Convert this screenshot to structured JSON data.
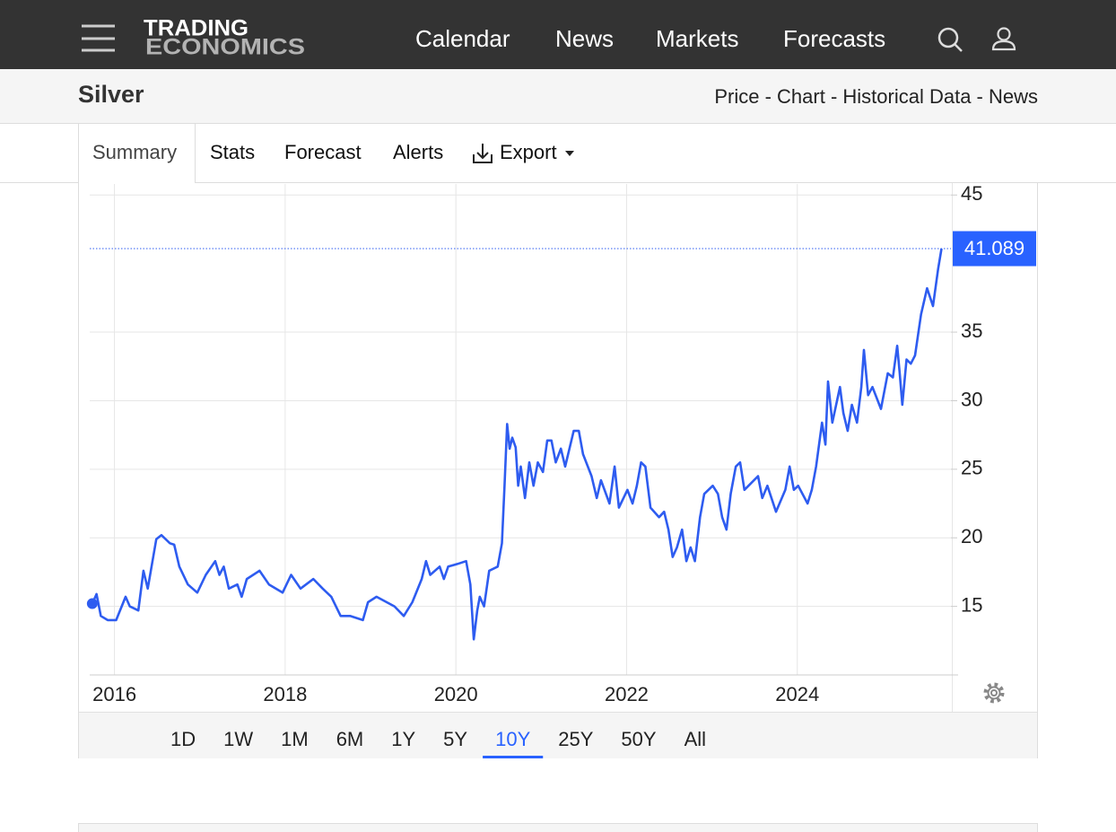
{
  "header": {
    "logo": [
      "TRADING",
      "ECONOMICS"
    ],
    "nav": [
      "Calendar",
      "News",
      "Markets",
      "Forecasts"
    ]
  },
  "title_bar": {
    "title": "Silver",
    "links": "Price - Chart - Historical Data - News"
  },
  "tabs": {
    "items": [
      "Summary",
      "Stats",
      "Forecast",
      "Alerts",
      "Export"
    ],
    "active": 0
  },
  "chart_data": {
    "type": "line",
    "color": "#2e5cf0",
    "grid": true,
    "xlim": [
      2015.71,
      2025.8
    ],
    "xticks": [
      2016,
      2018,
      2020,
      2022,
      2024
    ],
    "ylim": [
      10,
      46
    ],
    "yticks": [
      15,
      20,
      25,
      30,
      35,
      45
    ],
    "x": [
      2015.74,
      2015.79,
      2015.84,
      2015.92,
      2016.02,
      2016.13,
      2016.18,
      2016.28,
      2016.34,
      2016.39,
      2016.49,
      2016.55,
      2016.65,
      2016.7,
      2016.76,
      2016.86,
      2016.97,
      2017.07,
      2017.18,
      2017.23,
      2017.28,
      2017.34,
      2017.44,
      2017.49,
      2017.55,
      2017.7,
      2017.81,
      2017.97,
      2018.07,
      2018.18,
      2018.33,
      2018.44,
      2018.54,
      2018.65,
      2018.76,
      2018.91,
      2018.97,
      2019.07,
      2019.28,
      2019.39,
      2019.49,
      2019.6,
      2019.65,
      2019.7,
      2019.81,
      2019.86,
      2019.91,
      2020.02,
      2020.12,
      2020.17,
      2020.21,
      2020.25,
      2020.28,
      2020.33,
      2020.39,
      2020.49,
      2020.54,
      2020.57,
      2020.6,
      2020.63,
      2020.66,
      2020.7,
      2020.73,
      2020.76,
      2020.81,
      2020.86,
      2020.91,
      2020.96,
      2021.02,
      2021.07,
      2021.12,
      2021.17,
      2021.23,
      2021.28,
      2021.38,
      2021.44,
      2021.49,
      2021.59,
      2021.65,
      2021.7,
      2021.8,
      2021.86,
      2021.91,
      2022.01,
      2022.07,
      2022.12,
      2022.17,
      2022.22,
      2022.28,
      2022.38,
      2022.44,
      2022.49,
      2022.54,
      2022.59,
      2022.65,
      2022.7,
      2022.75,
      2022.8,
      2022.86,
      2022.91,
      2023.01,
      2023.07,
      2023.12,
      2023.17,
      2023.22,
      2023.28,
      2023.33,
      2023.38,
      2023.54,
      2023.59,
      2023.65,
      2023.75,
      2023.86,
      2023.91,
      2023.96,
      2024.01,
      2024.12,
      2024.17,
      2024.22,
      2024.29,
      2024.33,
      2024.36,
      2024.41,
      2024.5,
      2024.54,
      2024.59,
      2024.64,
      2024.7,
      2024.75,
      2024.78,
      2024.83,
      2024.88,
      2024.98,
      2025.06,
      2025.12,
      2025.17,
      2025.2,
      2025.23,
      2025.28,
      2025.33,
      2025.38,
      2025.41,
      2025.45,
      2025.52,
      2025.59,
      2025.65,
      2025.69
    ],
    "values": [
      15.2,
      15.9,
      14.3,
      14.0,
      14.0,
      15.7,
      15.0,
      14.7,
      17.6,
      16.3,
      19.9,
      20.2,
      19.6,
      19.5,
      17.9,
      16.6,
      16.0,
      17.3,
      18.3,
      17.3,
      17.9,
      16.3,
      16.6,
      15.7,
      17.0,
      17.6,
      16.6,
      16.0,
      17.3,
      16.3,
      17.0,
      16.3,
      15.7,
      14.3,
      14.3,
      14.0,
      15.3,
      15.7,
      15.0,
      14.3,
      15.3,
      17.0,
      18.3,
      17.3,
      17.9,
      17.0,
      17.9,
      18.1,
      18.3,
      16.6,
      12.6,
      14.7,
      15.7,
      15.0,
      17.6,
      17.9,
      19.6,
      23.8,
      28.3,
      26.5,
      27.3,
      26.6,
      23.8,
      25.2,
      22.9,
      25.5,
      23.8,
      25.5,
      24.8,
      27.1,
      27.1,
      25.5,
      26.5,
      25.2,
      27.8,
      27.8,
      26.1,
      24.5,
      22.9,
      24.2,
      22.5,
      25.2,
      22.2,
      23.5,
      22.5,
      23.8,
      25.5,
      25.2,
      22.2,
      21.5,
      21.9,
      20.6,
      18.6,
      19.3,
      20.6,
      18.3,
      19.3,
      18.3,
      21.5,
      23.2,
      23.8,
      23.2,
      21.5,
      20.6,
      23.2,
      25.2,
      25.5,
      23.5,
      24.5,
      22.9,
      23.8,
      21.9,
      23.5,
      25.2,
      23.5,
      23.8,
      22.5,
      23.5,
      25.2,
      28.4,
      26.8,
      31.4,
      28.4,
      31.0,
      29.1,
      27.8,
      29.7,
      28.4,
      31.0,
      33.7,
      30.4,
      31.0,
      29.4,
      32.0,
      31.7,
      34.0,
      32.0,
      29.7,
      33.0,
      32.7,
      33.3,
      34.6,
      36.3,
      38.2,
      36.9,
      39.6,
      41.089
    ]
  },
  "range_buttons": {
    "items": [
      "1D",
      "1W",
      "1M",
      "6M",
      "1Y",
      "5Y",
      "10Y",
      "25Y",
      "50Y",
      "All"
    ],
    "active": 6
  }
}
